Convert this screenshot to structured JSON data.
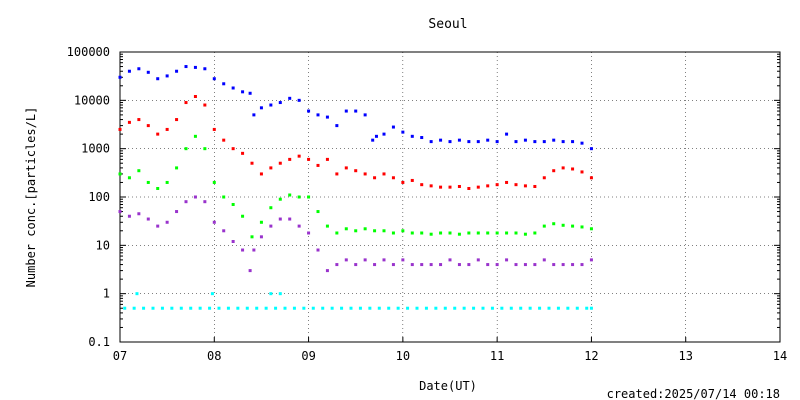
{
  "chart_data": {
    "type": "scatter",
    "title": "Seoul",
    "xlabel": "Date(UT)",
    "ylabel": "Number conc.[particles/L]",
    "x_tick_labels": [
      "07",
      "08",
      "09",
      "10",
      "11",
      "12",
      "13",
      "14"
    ],
    "xlim": [
      7,
      14
    ],
    "y_scale": "log",
    "ylim": [
      0.1,
      100000
    ],
    "y_tick_labels": [
      "0.1",
      "1",
      "10",
      "100",
      "1000",
      "10000",
      "100000"
    ],
    "grid": "dotted",
    "footer": "created:2025/07/14 00:18",
    "series": [
      {
        "color": "#0000ff",
        "x": [
          7.0,
          7.1,
          7.2,
          7.3,
          7.4,
          7.5,
          7.6,
          7.7,
          7.8,
          7.9,
          8.0,
          8.1,
          8.2,
          8.3,
          8.38,
          8.42,
          8.5,
          8.6,
          8.7,
          8.8,
          8.9,
          9.0,
          9.1,
          9.2,
          9.3,
          9.4,
          9.5,
          9.6,
          9.68,
          9.72,
          9.8,
          9.9,
          10.0,
          10.1,
          10.2,
          10.3,
          10.4,
          10.5,
          10.6,
          10.7,
          10.8,
          10.9,
          11.0,
          11.1,
          11.2,
          11.3,
          11.4,
          11.5,
          11.6,
          11.7,
          11.8,
          11.9,
          12.0
        ],
        "y": [
          30000,
          40000,
          45000,
          38000,
          28000,
          32000,
          40000,
          50000,
          48000,
          45000,
          28000,
          22000,
          18000,
          15000,
          14000,
          5000,
          7000,
          8000,
          9000,
          11000,
          10000,
          6000,
          5000,
          4500,
          3000,
          6000,
          6000,
          5000,
          1500,
          1800,
          2000,
          2800,
          2200,
          1800,
          1700,
          1400,
          1500,
          1400,
          1500,
          1400,
          1400,
          1500,
          1400,
          2000,
          1400,
          1500,
          1400,
          1400,
          1500,
          1400,
          1400,
          1300,
          1000
        ]
      },
      {
        "color": "#ff0000",
        "x": [
          7.0,
          7.1,
          7.2,
          7.3,
          7.4,
          7.5,
          7.6,
          7.7,
          7.8,
          7.9,
          8.0,
          8.1,
          8.2,
          8.3,
          8.4,
          8.5,
          8.6,
          8.7,
          8.8,
          8.9,
          9.0,
          9.1,
          9.2,
          9.3,
          9.4,
          9.5,
          9.6,
          9.7,
          9.8,
          9.9,
          10.0,
          10.1,
          10.2,
          10.3,
          10.4,
          10.5,
          10.6,
          10.7,
          10.8,
          10.9,
          11.0,
          11.1,
          11.2,
          11.3,
          11.4,
          11.5,
          11.6,
          11.7,
          11.8,
          11.9,
          12.0
        ],
        "y": [
          2500,
          3500,
          4000,
          3000,
          2000,
          2500,
          4000,
          9000,
          12000,
          8000,
          2500,
          1500,
          1000,
          800,
          500,
          300,
          400,
          500,
          600,
          700,
          600,
          450,
          600,
          300,
          400,
          350,
          300,
          250,
          300,
          250,
          200,
          220,
          180,
          170,
          160,
          160,
          165,
          150,
          160,
          170,
          180,
          200,
          180,
          170,
          165,
          250,
          350,
          400,
          380,
          330,
          250
        ]
      },
      {
        "color": "#00ff00",
        "x": [
          7.0,
          7.1,
          7.2,
          7.3,
          7.4,
          7.5,
          7.6,
          7.7,
          7.8,
          7.9,
          8.0,
          8.1,
          8.2,
          8.3,
          8.4,
          8.5,
          8.6,
          8.7,
          8.8,
          8.9,
          9.0,
          9.1,
          9.2,
          9.3,
          9.4,
          9.5,
          9.6,
          9.7,
          9.8,
          9.9,
          10.0,
          10.1,
          10.2,
          10.3,
          10.4,
          10.5,
          10.6,
          10.7,
          10.8,
          10.9,
          11.0,
          11.1,
          11.2,
          11.3,
          11.4,
          11.5,
          11.6,
          11.7,
          11.8,
          11.9,
          12.0
        ],
        "y": [
          300,
          250,
          350,
          200,
          150,
          200,
          400,
          1000,
          1800,
          1000,
          200,
          100,
          70,
          40,
          15,
          30,
          60,
          90,
          110,
          100,
          100,
          50,
          25,
          18,
          22,
          20,
          22,
          20,
          20,
          18,
          20,
          18,
          18,
          17,
          18,
          18,
          17,
          18,
          18,
          18,
          18,
          18,
          18,
          17,
          18,
          25,
          28,
          26,
          25,
          24,
          22
        ]
      },
      {
        "color": "#9933cc",
        "x": [
          7.0,
          7.1,
          7.2,
          7.3,
          7.4,
          7.5,
          7.6,
          7.7,
          7.8,
          7.9,
          8.0,
          8.1,
          8.2,
          8.3,
          8.38,
          8.42,
          8.5,
          8.6,
          8.7,
          8.8,
          8.9,
          9.0,
          9.1,
          9.2,
          9.3,
          9.4,
          9.5,
          9.6,
          9.7,
          9.8,
          9.9,
          10.0,
          10.1,
          10.2,
          10.3,
          10.4,
          10.5,
          10.6,
          10.7,
          10.8,
          10.9,
          11.0,
          11.1,
          11.2,
          11.3,
          11.4,
          11.5,
          11.6,
          11.7,
          11.8,
          11.9,
          12.0
        ],
        "y": [
          50,
          40,
          45,
          35,
          25,
          30,
          50,
          80,
          100,
          80,
          30,
          20,
          12,
          8,
          3,
          8,
          15,
          25,
          35,
          35,
          25,
          18,
          8,
          3,
          4,
          5,
          4,
          5,
          4,
          5,
          4,
          5,
          4,
          4,
          4,
          4,
          5,
          4,
          4,
          5,
          4,
          4,
          5,
          4,
          4,
          4,
          5,
          4,
          4,
          4,
          4,
          5
        ]
      },
      {
        "color": "#00ffff",
        "x": [
          7.05,
          7.15,
          7.25,
          7.35,
          7.45,
          7.55,
          7.65,
          7.75,
          7.85,
          7.95,
          8.05,
          8.15,
          8.25,
          8.35,
          8.45,
          8.55,
          8.65,
          8.75,
          8.85,
          8.95,
          9.05,
          9.15,
          9.25,
          9.35,
          9.45,
          9.55,
          9.65,
          9.75,
          9.85,
          9.95,
          10.05,
          10.15,
          10.25,
          10.35,
          10.45,
          10.55,
          10.65,
          10.75,
          10.85,
          10.95,
          11.05,
          11.15,
          11.25,
          11.35,
          11.45,
          11.55,
          11.65,
          11.75,
          11.85,
          11.95,
          12.0,
          7.18,
          7.98,
          8.6,
          8.7
        ],
        "y": [
          0.5,
          0.5,
          0.5,
          0.5,
          0.5,
          0.5,
          0.5,
          0.5,
          0.5,
          0.5,
          0.5,
          0.5,
          0.5,
          0.5,
          0.5,
          0.5,
          0.5,
          0.5,
          0.5,
          0.5,
          0.5,
          0.5,
          0.5,
          0.5,
          0.5,
          0.5,
          0.5,
          0.5,
          0.5,
          0.5,
          0.5,
          0.5,
          0.5,
          0.5,
          0.5,
          0.5,
          0.5,
          0.5,
          0.5,
          0.5,
          0.5,
          0.5,
          0.5,
          0.5,
          0.5,
          0.5,
          0.5,
          0.5,
          0.5,
          0.5,
          0.5,
          1,
          1,
          1,
          1
        ]
      }
    ]
  }
}
